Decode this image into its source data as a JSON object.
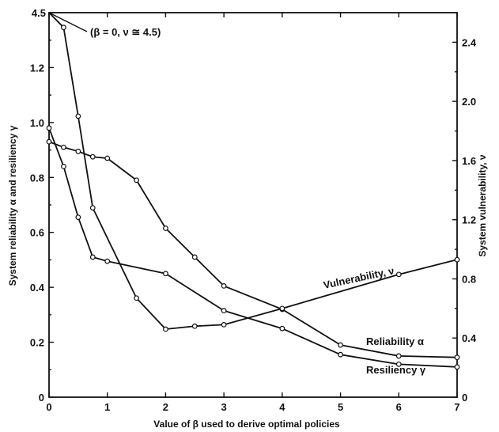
{
  "chart_data": {
    "type": "line",
    "xlabel": "Value of β used to derive optimal policies",
    "ylabel": "System reliability α and resiliency γ",
    "y2label": "System vulnerability, ν",
    "xlim": [
      0,
      7
    ],
    "ylim": [
      0,
      1.4
    ],
    "y2lim": [
      0,
      2.6
    ],
    "x_ticks": [
      "0",
      "1",
      "2",
      "3",
      "4",
      "5",
      "6",
      "7"
    ],
    "y_ticks": [
      "0",
      "0.2",
      "0.4",
      "0.6",
      "0.8",
      "1.0",
      "1.2"
    ],
    "y_top_label": "4.5",
    "y2_ticks": [
      "0",
      "0.4",
      "0.8",
      "1.2",
      "1.6",
      "2.0",
      "2.4"
    ],
    "grid": false,
    "series": [
      {
        "name": "Reliability α",
        "axis": "left",
        "x": [
          0,
          0.25,
          0.5,
          0.75,
          1.0,
          1.5,
          2.0,
          2.5,
          3.0,
          4.0,
          5.0,
          6.0,
          7.0
        ],
        "y": [
          0.93,
          0.91,
          0.895,
          0.875,
          0.87,
          0.79,
          0.615,
          0.51,
          0.405,
          0.32,
          0.19,
          0.15,
          0.145
        ]
      },
      {
        "name": "Resiliency γ",
        "axis": "left",
        "x": [
          0,
          0.25,
          0.5,
          0.75,
          1.0,
          2.0,
          3.0,
          4.0,
          5.0,
          6.0,
          7.0
        ],
        "y": [
          0.98,
          0.84,
          0.655,
          0.51,
          0.495,
          0.45,
          0.315,
          0.25,
          0.155,
          0.12,
          0.11
        ]
      },
      {
        "name": "Vulnerability, ν",
        "axis": "right",
        "x": [
          0,
          0.25,
          0.5,
          0.75,
          1.5,
          2.0,
          2.5,
          3.0,
          4.0,
          6.0,
          7.0
        ],
        "y": [
          4.5,
          2.5,
          1.9,
          1.28,
          0.67,
          0.46,
          0.48,
          0.49,
          0.6,
          0.83,
          0.93
        ]
      }
    ],
    "annotation": "(β = 0, ν ≅ 4.5)"
  }
}
